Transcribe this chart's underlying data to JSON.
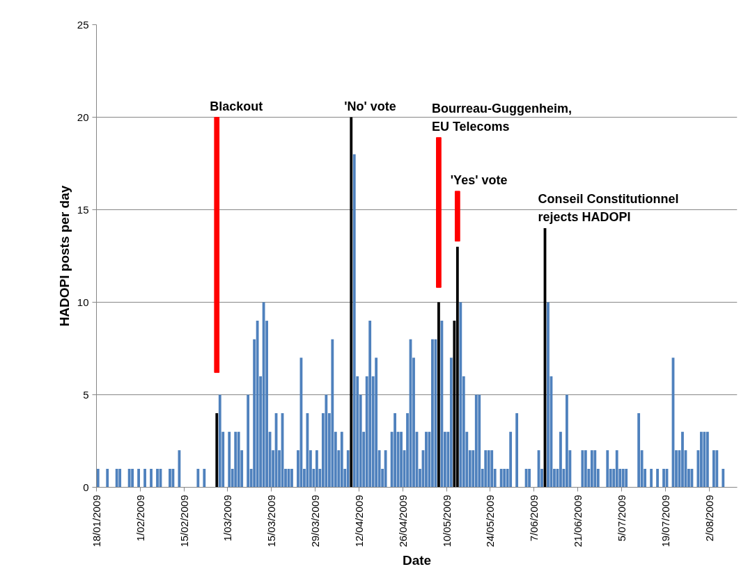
{
  "chart_data": {
    "type": "bar",
    "xlabel": "Date",
    "ylabel": "HADOPI posts per day",
    "x": [
      "2009-01-18",
      "2009-01-19",
      "2009-01-20",
      "2009-01-21",
      "2009-01-22",
      "2009-01-23",
      "2009-01-24",
      "2009-01-25",
      "2009-01-26",
      "2009-01-27",
      "2009-01-28",
      "2009-01-29",
      "2009-01-30",
      "2009-01-31",
      "2009-02-01",
      "2009-02-02",
      "2009-02-03",
      "2009-02-04",
      "2009-02-05",
      "2009-02-06",
      "2009-02-07",
      "2009-02-08",
      "2009-02-09",
      "2009-02-10",
      "2009-02-11",
      "2009-02-12",
      "2009-02-13",
      "2009-02-14",
      "2009-02-15",
      "2009-02-16",
      "2009-02-17",
      "2009-02-18",
      "2009-02-19",
      "2009-02-20",
      "2009-02-21",
      "2009-02-22",
      "2009-02-23",
      "2009-02-24",
      "2009-02-25",
      "2009-02-26",
      "2009-02-27",
      "2009-02-28",
      "2009-03-01",
      "2009-03-02",
      "2009-03-03",
      "2009-03-04",
      "2009-03-05",
      "2009-03-06",
      "2009-03-07",
      "2009-03-08",
      "2009-03-09",
      "2009-03-10",
      "2009-03-11",
      "2009-03-12",
      "2009-03-13",
      "2009-03-14",
      "2009-03-15",
      "2009-03-16",
      "2009-03-17",
      "2009-03-18",
      "2009-03-19",
      "2009-03-20",
      "2009-03-21",
      "2009-03-22",
      "2009-03-23",
      "2009-03-24",
      "2009-03-25",
      "2009-03-26",
      "2009-03-27",
      "2009-03-28",
      "2009-03-29",
      "2009-03-30",
      "2009-03-31",
      "2009-04-01",
      "2009-04-02",
      "2009-04-03",
      "2009-04-04",
      "2009-04-05",
      "2009-04-06",
      "2009-04-07",
      "2009-04-08",
      "2009-04-09",
      "2009-04-10",
      "2009-04-11",
      "2009-04-12",
      "2009-04-13",
      "2009-04-14",
      "2009-04-15",
      "2009-04-16",
      "2009-04-17",
      "2009-04-18",
      "2009-04-19",
      "2009-04-20",
      "2009-04-21",
      "2009-04-22",
      "2009-04-23",
      "2009-04-24",
      "2009-04-25",
      "2009-04-26",
      "2009-04-27",
      "2009-04-28",
      "2009-04-29",
      "2009-04-30",
      "2009-05-01",
      "2009-05-02",
      "2009-05-03",
      "2009-05-04",
      "2009-05-05",
      "2009-05-06",
      "2009-05-07",
      "2009-05-08",
      "2009-05-09",
      "2009-05-10",
      "2009-05-11",
      "2009-05-12",
      "2009-05-13",
      "2009-05-14",
      "2009-05-15",
      "2009-05-16",
      "2009-05-17",
      "2009-05-18",
      "2009-05-19",
      "2009-05-20",
      "2009-05-21",
      "2009-05-22",
      "2009-05-23",
      "2009-05-24",
      "2009-05-25",
      "2009-05-26",
      "2009-05-27",
      "2009-05-28",
      "2009-05-29",
      "2009-05-30",
      "2009-05-31",
      "2009-06-01",
      "2009-06-02",
      "2009-06-03",
      "2009-06-04",
      "2009-06-05",
      "2009-06-06",
      "2009-06-07",
      "2009-06-08",
      "2009-06-09",
      "2009-06-10",
      "2009-06-11",
      "2009-06-12",
      "2009-06-13",
      "2009-06-14",
      "2009-06-15",
      "2009-06-16",
      "2009-06-17",
      "2009-06-18",
      "2009-06-19",
      "2009-06-20",
      "2009-06-21",
      "2009-06-22",
      "2009-06-23",
      "2009-06-24",
      "2009-06-25",
      "2009-06-26",
      "2009-06-27",
      "2009-06-28",
      "2009-06-29",
      "2009-06-30",
      "2009-07-01",
      "2009-07-02",
      "2009-07-03",
      "2009-07-04",
      "2009-07-05",
      "2009-07-06",
      "2009-07-07",
      "2009-07-08",
      "2009-07-09",
      "2009-07-10",
      "2009-07-11",
      "2009-07-12",
      "2009-07-13",
      "2009-07-14",
      "2009-07-15",
      "2009-07-16",
      "2009-07-17",
      "2009-07-18",
      "2009-07-19",
      "2009-07-20",
      "2009-07-21",
      "2009-07-22",
      "2009-07-23",
      "2009-07-24",
      "2009-07-25",
      "2009-07-26",
      "2009-07-27",
      "2009-07-28",
      "2009-07-29",
      "2009-07-30",
      "2009-07-31",
      "2009-08-01",
      "2009-08-02",
      "2009-08-03",
      "2009-08-04",
      "2009-08-05",
      "2009-08-06"
    ],
    "series": [
      {
        "color": "#4f81bd",
        "values": [
          1,
          0,
          0,
          1,
          0,
          0,
          1,
          1,
          0,
          0,
          1,
          1,
          0,
          1,
          0,
          1,
          0,
          1,
          0,
          1,
          1,
          0,
          0,
          1,
          1,
          0,
          2,
          0,
          0,
          0,
          0,
          0,
          1,
          0,
          1,
          0,
          0,
          0,
          null,
          5,
          3,
          0,
          3,
          1,
          3,
          3,
          2,
          0,
          5,
          1,
          8,
          9,
          6,
          10,
          9,
          3,
          2,
          4,
          2,
          4,
          1,
          1,
          1,
          0,
          2,
          7,
          1,
          4,
          2,
          1,
          2,
          1,
          4,
          5,
          4,
          8,
          3,
          2,
          3,
          1,
          2,
          null,
          18,
          6,
          5,
          3,
          6,
          9,
          6,
          7,
          2,
          1,
          2,
          0,
          3,
          4,
          3,
          3,
          2,
          4,
          8,
          7,
          3,
          1,
          2,
          3,
          3,
          8,
          8,
          null,
          9,
          3,
          3,
          7,
          null,
          null,
          10,
          6,
          3,
          2,
          2,
          5,
          5,
          1,
          2,
          2,
          2,
          1,
          0,
          1,
          1,
          1,
          3,
          0,
          4,
          0,
          0,
          1,
          1,
          0,
          0,
          2,
          1,
          null,
          10,
          6,
          1,
          1,
          3,
          1,
          5,
          2,
          0,
          0,
          0,
          2,
          2,
          1,
          2,
          2,
          1,
          0,
          0,
          2,
          1,
          1,
          2,
          1,
          1,
          1,
          0,
          0,
          0,
          4,
          2,
          1,
          0,
          1,
          0,
          1,
          0,
          1,
          1,
          0,
          7,
          2,
          2,
          3,
          2,
          1,
          1,
          0,
          2,
          3,
          3,
          3,
          0,
          2,
          2,
          0,
          1
        ]
      },
      {
        "color": "#000000",
        "x": [
          "2009-02-25",
          "2009-04-09",
          "2009-05-07",
          "2009-05-12",
          "2009-05-13",
          "2009-06-10"
        ],
        "values": [
          4,
          20,
          10,
          9,
          13,
          14
        ]
      },
      {
        "color": "#ff0000",
        "x": [
          "2009-02-25",
          "2009-05-07",
          "2009-05-13"
        ],
        "base": [
          6.2,
          10.8,
          13.3
        ],
        "values": [
          13.8,
          8.1,
          2.7
        ]
      }
    ],
    "annotations": [
      {
        "text": "Blackout",
        "x": "2009-02-25",
        "y": 20
      },
      {
        "text": "'No' vote",
        "x": "2009-04-09",
        "y": 20
      },
      {
        "text": "Bourreau-Guggenheim,\nEU Telecoms",
        "x": "2009-05-07",
        "y": 18.9
      },
      {
        "text": "'Yes' vote",
        "x": "2009-05-13",
        "y": 16
      },
      {
        "text": "Conseil Constitutionnel\nrejects HADOPI",
        "x": "2009-06-10",
        "y": 14
      }
    ],
    "xlim": [
      "2009-01-18",
      "2009-08-11"
    ],
    "xticks": [
      {
        "value": "2009-01-18",
        "label": "18/01/2009"
      },
      {
        "value": "2009-02-01",
        "label": "1/02/2009"
      },
      {
        "value": "2009-02-15",
        "label": "15/02/2009"
      },
      {
        "value": "2009-03-01",
        "label": "1/03/2009"
      },
      {
        "value": "2009-03-15",
        "label": "15/03/2009"
      },
      {
        "value": "2009-03-29",
        "label": "29/03/2009"
      },
      {
        "value": "2009-04-12",
        "label": "12/04/2009"
      },
      {
        "value": "2009-04-26",
        "label": "26/04/2009"
      },
      {
        "value": "2009-05-10",
        "label": "10/05/2009"
      },
      {
        "value": "2009-05-24",
        "label": "24/05/2009"
      },
      {
        "value": "2009-06-07",
        "label": "7/06/2009"
      },
      {
        "value": "2009-06-21",
        "label": "21/06/2009"
      },
      {
        "value": "2009-07-05",
        "label": "5/07/2009"
      },
      {
        "value": "2009-07-19",
        "label": "19/07/2009"
      },
      {
        "value": "2009-08-02",
        "label": "2/08/2009"
      }
    ],
    "ylim": [
      0,
      25
    ],
    "yticks": [
      0,
      5,
      10,
      15,
      20,
      25
    ],
    "grid": "y"
  }
}
